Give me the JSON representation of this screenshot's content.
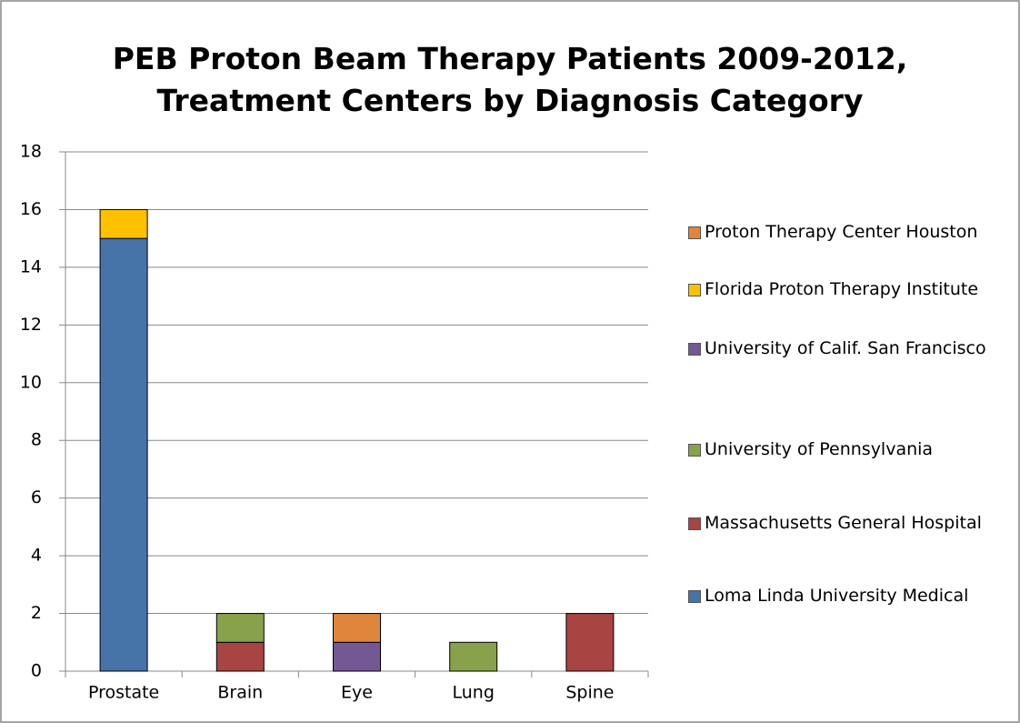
{
  "chart_data": {
    "type": "stacked_bar",
    "title": "PEB Proton Beam Therapy Patients 2009-2012, Treatment Centers by Diagnosis Category",
    "categories": [
      "Prostate",
      "Brain",
      "Eye",
      "Lung",
      "Spine"
    ],
    "series": [
      {
        "name": "Loma Linda University Medical",
        "color": "#4673a8",
        "values": [
          15,
          0,
          0,
          0,
          0
        ]
      },
      {
        "name": "Massachusetts General Hospital",
        "color": "#a84442",
        "values": [
          0,
          1,
          0,
          0,
          2
        ]
      },
      {
        "name": "University of Pennsylvania",
        "color": "#87a24a",
        "values": [
          0,
          1,
          0,
          1,
          0
        ]
      },
      {
        "name": "University of Calif. San Francisco",
        "color": "#735893",
        "values": [
          0,
          0,
          1,
          0,
          0
        ]
      },
      {
        "name": "Florida Proton Therapy Institute",
        "color": "#ffc000",
        "values": [
          1,
          0,
          0,
          0,
          0
        ]
      },
      {
        "name": "Proton Therapy Center Houston",
        "color": "#e0853c",
        "values": [
          0,
          0,
          1,
          0,
          0
        ]
      }
    ],
    "ylim": [
      0,
      18
    ],
    "yticks": [
      0,
      2,
      4,
      6,
      8,
      10,
      12,
      14,
      16,
      18
    ],
    "grid": true,
    "legend": "right"
  }
}
